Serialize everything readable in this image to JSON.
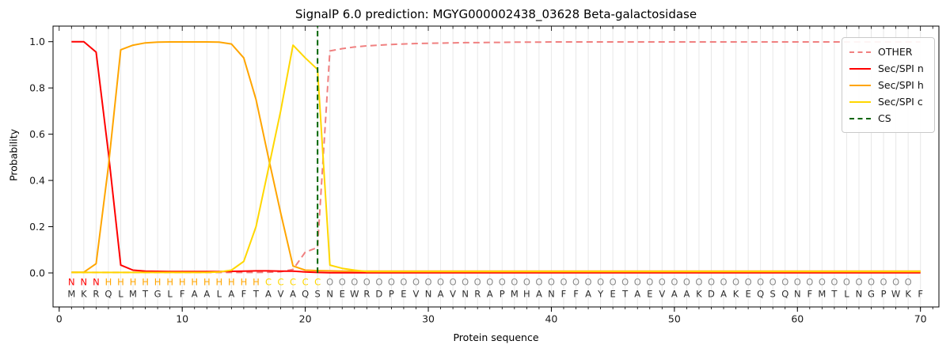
{
  "chart_data": {
    "type": "line",
    "title": "SignalP 6.0 prediction: MGYG000002438_03628 Beta-galactosidase",
    "xlabel": "Protein sequence",
    "ylabel": "Probability",
    "xlim": [
      -0.5,
      71.5
    ],
    "ylim": [
      -0.147,
      1.067
    ],
    "x_ticks": [
      0,
      10,
      20,
      30,
      40,
      50,
      60,
      70
    ],
    "y_ticks": [
      0.0,
      0.2,
      0.4,
      0.6,
      0.8,
      1.0
    ],
    "grid": "vertical line at every residue position",
    "legend_position": "upper-right",
    "x_start": 1,
    "series": [
      {
        "name": "OTHER",
        "color": "#f08080",
        "style": "dashed",
        "values": [
          0.002,
          0.002,
          0.002,
          0.002,
          0.002,
          0.002,
          0.002,
          0.002,
          0.002,
          0.002,
          0.002,
          0.002,
          0.002,
          0.002,
          0.002,
          0.002,
          0.003,
          0.005,
          0.015,
          0.09,
          0.11,
          0.96,
          0.97,
          0.977,
          0.982,
          0.985,
          0.988,
          0.99,
          0.992,
          0.993,
          0.994,
          0.995,
          0.996,
          0.996,
          0.997,
          0.997,
          0.998,
          0.998,
          0.998,
          0.999,
          0.999,
          0.999,
          0.999,
          0.999,
          0.999,
          0.999,
          0.999,
          0.999,
          0.999,
          0.999,
          0.999,
          0.999,
          0.999,
          0.999,
          0.999,
          0.999,
          0.999,
          0.999,
          0.999,
          0.999,
          0.999,
          0.999,
          0.999,
          0.999,
          0.999,
          0.999,
          0.999,
          0.999,
          0.999,
          0.999
        ]
      },
      {
        "name": "Sec/SPI n",
        "color": "#ff0000",
        "style": "solid",
        "values": [
          1.0,
          1.0,
          0.955,
          0.52,
          0.034,
          0.012,
          0.008,
          0.007,
          0.006,
          0.006,
          0.006,
          0.006,
          0.006,
          0.007,
          0.008,
          0.009,
          0.009,
          0.008,
          0.008,
          0.004,
          0.002,
          0.001,
          0.001,
          0.001,
          0.001,
          0.001,
          0.001,
          0.001,
          0.001,
          0.001,
          0.001,
          0.001,
          0.001,
          0.001,
          0.001,
          0.001,
          0.001,
          0.001,
          0.001,
          0.001,
          0.001,
          0.001,
          0.001,
          0.001,
          0.001,
          0.001,
          0.001,
          0.001,
          0.001,
          0.001,
          0.001,
          0.001,
          0.001,
          0.001,
          0.001,
          0.001,
          0.001,
          0.001,
          0.001,
          0.001,
          0.001,
          0.001,
          0.001,
          0.001,
          0.001,
          0.001,
          0.001,
          0.001,
          0.001,
          0.001
        ]
      },
      {
        "name": "Sec/SPI h",
        "color": "#ffa500",
        "style": "solid",
        "values": [
          0.003,
          0.003,
          0.04,
          0.46,
          0.965,
          0.985,
          0.995,
          0.998,
          0.999,
          0.999,
          0.999,
          0.999,
          0.998,
          0.99,
          0.93,
          0.75,
          0.5,
          0.26,
          0.03,
          0.012,
          0.01,
          0.009,
          0.008,
          0.008,
          0.008,
          0.008,
          0.008,
          0.008,
          0.008,
          0.008,
          0.008,
          0.008,
          0.008,
          0.008,
          0.008,
          0.008,
          0.008,
          0.008,
          0.008,
          0.008,
          0.008,
          0.008,
          0.008,
          0.008,
          0.008,
          0.008,
          0.008,
          0.008,
          0.008,
          0.008,
          0.008,
          0.008,
          0.008,
          0.008,
          0.008,
          0.008,
          0.008,
          0.008,
          0.008,
          0.008,
          0.008,
          0.008,
          0.008,
          0.008,
          0.008,
          0.008,
          0.008,
          0.008,
          0.008,
          0.008
        ]
      },
      {
        "name": "Sec/SPI c",
        "color": "#ffd700",
        "style": "solid",
        "values": [
          0.002,
          0.002,
          0.002,
          0.002,
          0.002,
          0.002,
          0.002,
          0.002,
          0.002,
          0.002,
          0.002,
          0.002,
          0.004,
          0.012,
          0.05,
          0.2,
          0.45,
          0.7,
          0.985,
          0.93,
          0.88,
          0.034,
          0.02,
          0.012,
          0.006,
          0.006,
          0.006,
          0.006,
          0.006,
          0.006,
          0.006,
          0.006,
          0.006,
          0.006,
          0.006,
          0.006,
          0.006,
          0.006,
          0.006,
          0.006,
          0.006,
          0.006,
          0.006,
          0.006,
          0.006,
          0.006,
          0.006,
          0.006,
          0.006,
          0.006,
          0.006,
          0.006,
          0.006,
          0.006,
          0.006,
          0.006,
          0.006,
          0.006,
          0.006,
          0.006,
          0.006,
          0.006,
          0.006,
          0.006,
          0.006,
          0.006,
          0.006,
          0.006,
          0.006,
          0.006
        ]
      }
    ],
    "cs_marker": {
      "name": "CS",
      "color": "#006400",
      "style": "dashed",
      "position": 21
    },
    "sequence": "MKRQLMTGLFAALAFTAVAQSNEWRDPEVNAVNRAPMHANFFAYETAEVAAKDAKEQSQNFMTLNGPWKF",
    "region_labels": "NNNHHHHHHHHHHHHHCCCCCOOOOOOOOOOOOOOOOOOOOOOOOOOOOOOOOOOOOOOOOOOOOOOOO",
    "label_colors": {
      "N": "#ff0000",
      "H": "#ffa500",
      "C": "#ffd700",
      "O": "#8c8c8c"
    },
    "sequence_color": "#2e2e2e",
    "grid_color": "#e8e8e8",
    "spine_color": "#000000",
    "tick_label_color": "#1a1a1a"
  }
}
